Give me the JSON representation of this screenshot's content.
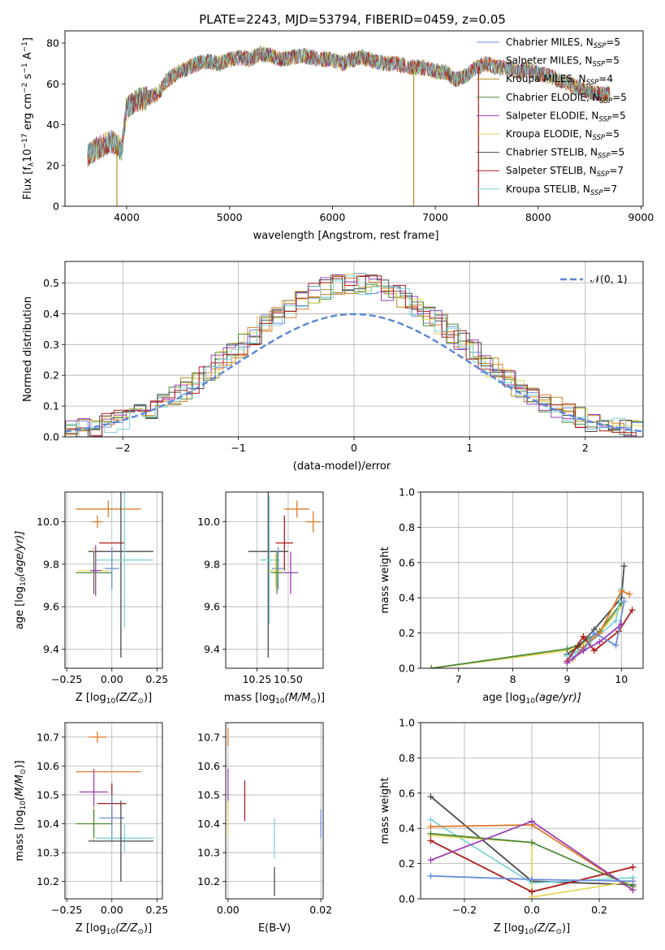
{
  "title": "PLATE=2243, MJD=53794, FIBERID=0459, z=0.05",
  "colors": {
    "chabrier_miles": "#6a8fdc",
    "salpeter_miles": "#e07a28",
    "kroupa_miles": "#b58a1b",
    "chabrier_elodie": "#4f8a3c",
    "salpeter_elodie": "#9b3fb5",
    "kroupa_elodie": "#e6d65a",
    "chabrier_stelib": "#4a4a4a",
    "salpeter_stelib": "#b01c1c",
    "kroupa_stelib": "#7fd3d9",
    "normal_curve": "#5b86d6",
    "grid": "#b0b0b0"
  },
  "legend_items": [
    {
      "label": "Chabrier MILES, N",
      "sub": "SSP",
      "suffix": "=5",
      "color_key": "chabrier_miles"
    },
    {
      "label": "Salpeter MILES, N",
      "sub": "SSP",
      "suffix": "=5",
      "color_key": "salpeter_miles"
    },
    {
      "label": "Kroupa MILES, N",
      "sub": "SSP",
      "suffix": "=4",
      "color_key": "kroupa_miles"
    },
    {
      "label": "Chabrier ELODIE, N",
      "sub": "SSP",
      "suffix": "=5",
      "color_key": "chabrier_elodie"
    },
    {
      "label": "Salpeter ELODIE, N",
      "sub": "SSP",
      "suffix": "=5",
      "color_key": "salpeter_elodie"
    },
    {
      "label": "Kroupa ELODIE, N",
      "sub": "SSP",
      "suffix": "=5",
      "color_key": "kroupa_elodie"
    },
    {
      "label": "Chabrier STELIB, N",
      "sub": "SSP",
      "suffix": "=5",
      "color_key": "chabrier_stelib"
    },
    {
      "label": "Salpeter STELIB, N",
      "sub": "SSP",
      "suffix": "=7",
      "color_key": "salpeter_stelib"
    },
    {
      "label": "Kroupa STELIB, N",
      "sub": "SSP",
      "suffix": "=7",
      "color_key": "kroupa_stelib"
    }
  ],
  "chart_data": [
    {
      "id": "spectrum",
      "type": "line",
      "xlabel": "wavelength [Angstrom, rest frame]",
      "ylabel_parts": [
        "Flux [f",
        "λ",
        "10",
        "−17",
        " erg cm",
        "−2",
        " s",
        "−1",
        " A",
        "−1",
        "]"
      ],
      "xlim": [
        3400,
        9020
      ],
      "ylim": [
        0,
        86
      ],
      "xticks": [
        4000,
        5000,
        6000,
        7000,
        8000,
        9000
      ],
      "yticks": [
        0,
        20,
        40,
        60,
        80
      ],
      "grid": false,
      "legend_position": "top-right",
      "x": [
        3620,
        3700,
        3780,
        3850,
        3900,
        3950,
        4000,
        4100,
        4200,
        4300,
        4400,
        4500,
        4600,
        4700,
        4800,
        4900,
        5000,
        5100,
        5200,
        5300,
        5400,
        5500,
        5600,
        5700,
        5800,
        5900,
        6000,
        6100,
        6200,
        6300,
        6400,
        6500,
        6600,
        6700,
        6800,
        6900,
        7000,
        7100,
        7200,
        7300,
        7400,
        7500,
        7600,
        7700,
        7800,
        7900,
        8000,
        8100,
        8200,
        8300,
        8400,
        8500,
        8600,
        8700
      ],
      "y": [
        25,
        28,
        30,
        32,
        30,
        28,
        48,
        52,
        53,
        55,
        62,
        66,
        68,
        70,
        71,
        70,
        72,
        73,
        72,
        75,
        74,
        72,
        73,
        74,
        73,
        72,
        72,
        70,
        72,
        73,
        71,
        70,
        70,
        69,
        68,
        68,
        66,
        66,
        62,
        64,
        68,
        70,
        68,
        68,
        66,
        67,
        65,
        64,
        62,
        60,
        58,
        56,
        55,
        55
      ],
      "drops": [
        {
          "x": 3905,
          "color_key": "kroupa_miles"
        },
        {
          "x": 6790,
          "color_key": "kroupa_miles"
        },
        {
          "x": 7420,
          "color_key": "salpeter_stelib"
        }
      ]
    },
    {
      "id": "residuals",
      "type": "step",
      "xlabel": "(data-model)/error",
      "ylabel": "Normed distribution",
      "xlim": [
        -2.5,
        2.5
      ],
      "ylim": [
        0,
        0.57
      ],
      "xticks": [
        -2,
        -1,
        0,
        1,
        2
      ],
      "yticks": [
        0.0,
        0.1,
        0.2,
        0.3,
        0.4,
        0.5
      ],
      "grid": true,
      "legend_position": "top-right",
      "legend_label": "𝒩(0, 1)"
    },
    {
      "id": "age_vs_Z",
      "type": "errorbar",
      "xlabel_parts": [
        "Z [log",
        "10",
        "(Z/Z",
        "⊙",
        ")]"
      ],
      "ylabel_parts": [
        "age  [log",
        "10",
        "(age/yr)]"
      ],
      "xlim": [
        -0.26,
        0.28
      ],
      "ylim": [
        9.31,
        10.14
      ],
      "xticks": [
        -0.25,
        0.0,
        0.25
      ],
      "yticks": [
        9.4,
        9.6,
        9.8,
        10.0
      ],
      "grid": true,
      "points": [
        {
          "x": -0.08,
          "y": 10.0,
          "xerr": 0.03,
          "yerr": 0.03,
          "color_key": "salpeter_miles"
        },
        {
          "x": -0.02,
          "y": 10.06,
          "xerr": 0.18,
          "yerr": 0.04,
          "color_key": "salpeter_miles"
        },
        {
          "x": 0.0,
          "y": 9.9,
          "xerr": 0.07,
          "yerr": 0.0,
          "color_key": "salpeter_stelib"
        },
        {
          "x": 0.05,
          "y": 9.86,
          "xerr": 0.18,
          "yerr": 0.5,
          "color_key": "chabrier_stelib"
        },
        {
          "x": 0.07,
          "y": 9.82,
          "xerr": 0.16,
          "yerr": 0.32,
          "color_key": "kroupa_stelib"
        },
        {
          "x": 0.0,
          "y": 9.78,
          "xerr": 0.04,
          "yerr": 0.1,
          "color_key": "chabrier_miles"
        },
        {
          "x": -0.1,
          "y": 9.77,
          "xerr": 0.09,
          "yerr": 0.11,
          "color_key": "kroupa_elodie"
        },
        {
          "x": -0.1,
          "y": 9.76,
          "xerr": 0.1,
          "yerr": 0.1,
          "color_key": "chabrier_elodie"
        },
        {
          "x": -0.09,
          "y": 9.77,
          "xerr": 0.03,
          "yerr": 0.12,
          "color_key": "salpeter_elodie"
        }
      ]
    },
    {
      "id": "age_vs_mass",
      "type": "errorbar",
      "xlabel_parts": [
        "mass [log",
        "10",
        "(M/M",
        "⊙",
        ")]"
      ],
      "ylabel": "",
      "xlim": [
        10.0,
        10.78
      ],
      "ylim": [
        9.31,
        10.14
      ],
      "xticks": [
        10.25,
        10.5
      ],
      "yticks": [
        9.4,
        9.6,
        9.8,
        10.0
      ],
      "grid": true,
      "points": [
        {
          "x": 10.57,
          "y": 10.06,
          "xerr": 0.1,
          "yerr": 0.04,
          "color_key": "salpeter_miles"
        },
        {
          "x": 10.7,
          "y": 10.0,
          "xerr": 0.06,
          "yerr": 0.05,
          "color_key": "salpeter_miles"
        },
        {
          "x": 10.47,
          "y": 9.9,
          "xerr": 0.07,
          "yerr": 0.13,
          "color_key": "salpeter_stelib"
        },
        {
          "x": 10.34,
          "y": 9.86,
          "xerr": 0.16,
          "yerr": 0.5,
          "color_key": "chabrier_stelib"
        },
        {
          "x": 10.35,
          "y": 9.82,
          "xerr": 0.08,
          "yerr": 0.3,
          "color_key": "kroupa_stelib"
        },
        {
          "x": 10.42,
          "y": 9.78,
          "xerr": 0.05,
          "yerr": 0.1,
          "color_key": "chabrier_miles"
        },
        {
          "x": 10.4,
          "y": 9.77,
          "xerr": 0.05,
          "yerr": 0.08,
          "color_key": "kroupa_elodie"
        },
        {
          "x": 10.41,
          "y": 9.76,
          "xerr": 0.05,
          "yerr": 0.1,
          "color_key": "chabrier_elodie"
        },
        {
          "x": 10.52,
          "y": 9.76,
          "xerr": 0.06,
          "yerr": 0.1,
          "color_key": "salpeter_elodie"
        }
      ]
    },
    {
      "id": "weight_vs_age",
      "type": "line",
      "xlabel_parts": [
        "age  [log",
        "10",
        "(age/yr)]"
      ],
      "ylabel": "mass weight",
      "xlim": [
        6.3,
        10.4
      ],
      "ylim": [
        0.0,
        1.0
      ],
      "xticks": [
        7,
        8,
        9,
        10
      ],
      "yticks": [
        0.0,
        0.2,
        0.4,
        0.6,
        0.8,
        1.0
      ],
      "grid": true,
      "series": [
        {
          "color_key": "kroupa_elodie",
          "x": [
            6.5,
            9.0,
            9.2,
            9.6,
            10.0
          ],
          "y": [
            0.0,
            0.1,
            0.12,
            0.2,
            0.35
          ]
        },
        {
          "color_key": "chabrier_elodie",
          "x": [
            6.5,
            9.0,
            9.2,
            9.6,
            10.0
          ],
          "y": [
            0.0,
            0.11,
            0.13,
            0.21,
            0.37
          ]
        },
        {
          "color_key": "chabrier_stelib",
          "x": [
            9.0,
            9.2,
            9.5,
            10.0,
            10.05
          ],
          "y": [
            0.08,
            0.12,
            0.22,
            0.4,
            0.58
          ]
        },
        {
          "color_key": "kroupa_stelib",
          "x": [
            9.0,
            9.15,
            9.4,
            9.9,
            10.0
          ],
          "y": [
            0.07,
            0.09,
            0.14,
            0.27,
            0.45
          ]
        },
        {
          "color_key": "salpeter_miles",
          "x": [
            9.1,
            9.3,
            9.6,
            10.0,
            10.15
          ],
          "y": [
            0.05,
            0.12,
            0.2,
            0.44,
            0.42
          ]
        },
        {
          "color_key": "salpeter_stelib",
          "x": [
            9.0,
            9.3,
            9.5,
            9.95,
            10.2
          ],
          "y": [
            0.04,
            0.18,
            0.1,
            0.21,
            0.33
          ]
        },
        {
          "color_key": "chabrier_miles",
          "x": [
            9.1,
            9.3,
            9.5,
            9.9,
            10.05
          ],
          "y": [
            0.06,
            0.1,
            0.2,
            0.13,
            0.38
          ]
        },
        {
          "color_key": "salpeter_elodie",
          "x": [
            9.0,
            9.3,
            9.6,
            10.0
          ],
          "y": [
            0.03,
            0.1,
            0.15,
            0.25
          ]
        }
      ]
    },
    {
      "id": "mass_vs_Z",
      "type": "errorbar",
      "xlabel_parts": [
        "Z [log",
        "10",
        "(Z/Z",
        "⊙",
        ")]"
      ],
      "ylabel_parts": [
        "mass [log",
        "10",
        "(M/M",
        "⊙",
        ")]"
      ],
      "xlim": [
        -0.26,
        0.28
      ],
      "ylim": [
        10.14,
        10.75
      ],
      "xticks": [
        -0.25,
        0.0,
        0.25
      ],
      "yticks": [
        10.2,
        10.3,
        10.4,
        10.5,
        10.6,
        10.7
      ],
      "grid": true,
      "points": [
        {
          "x": -0.08,
          "y": 10.7,
          "xerr": 0.05,
          "yerr": 0.02,
          "color_key": "salpeter_miles"
        },
        {
          "x": -0.02,
          "y": 10.58,
          "xerr": 0.18,
          "yerr": 0.0,
          "color_key": "salpeter_miles"
        },
        {
          "x": -0.1,
          "y": 10.51,
          "xerr": 0.08,
          "yerr": 0.08,
          "color_key": "salpeter_elodie"
        },
        {
          "x": 0.0,
          "y": 10.47,
          "xerr": 0.08,
          "yerr": 0.07,
          "color_key": "salpeter_stelib"
        },
        {
          "x": 0.0,
          "y": 10.42,
          "xerr": 0.07,
          "yerr": 0.08,
          "color_key": "chabrier_miles"
        },
        {
          "x": -0.1,
          "y": 10.4,
          "xerr": 0.1,
          "yerr": 0.06,
          "color_key": "kroupa_elodie"
        },
        {
          "x": -0.1,
          "y": 10.4,
          "xerr": 0.1,
          "yerr": 0.05,
          "color_key": "chabrier_elodie"
        },
        {
          "x": 0.07,
          "y": 10.35,
          "xerr": 0.16,
          "yerr": 0.05,
          "color_key": "kroupa_stelib"
        },
        {
          "x": 0.05,
          "y": 10.34,
          "xerr": 0.18,
          "yerr": 0.14,
          "color_key": "chabrier_stelib"
        }
      ]
    },
    {
      "id": "mass_vs_EBV",
      "type": "errorbar",
      "xlabel": "E(B-V)",
      "ylabel": "",
      "xlim": [
        -0.0005,
        0.0205
      ],
      "ylim": [
        10.14,
        10.75
      ],
      "xticks": [
        0.0,
        0.02
      ],
      "yticks": [
        10.2,
        10.3,
        10.4,
        10.5,
        10.6,
        10.7
      ],
      "grid": true,
      "points": [
        {
          "x": 0.0,
          "y": 10.7,
          "xerr": 0.0,
          "yerr": 0.03,
          "color_key": "salpeter_miles"
        },
        {
          "x": 0.0,
          "y": 10.52,
          "xerr": 0.0,
          "yerr": 0.07,
          "color_key": "salpeter_elodie"
        },
        {
          "x": 0.0,
          "y": 10.42,
          "xerr": 0.0,
          "yerr": 0.06,
          "color_key": "kroupa_elodie"
        },
        {
          "x": 0.0036,
          "y": 10.48,
          "xerr": 0.0,
          "yerr": 0.07,
          "color_key": "salpeter_stelib"
        },
        {
          "x": 0.01,
          "y": 10.35,
          "xerr": 0.0,
          "yerr": 0.07,
          "color_key": "kroupa_stelib"
        },
        {
          "x": 0.01,
          "y": 10.2,
          "xerr": 0.0,
          "yerr": 0.05,
          "color_key": "chabrier_stelib"
        },
        {
          "x": 0.02,
          "y": 10.4,
          "xerr": 0.0,
          "yerr": 0.05,
          "color_key": "chabrier_miles"
        }
      ]
    },
    {
      "id": "weight_vs_Z",
      "type": "line",
      "xlabel_parts": [
        "Z [log",
        "10",
        "(Z/Z",
        "⊙",
        ")]"
      ],
      "ylabel": "mass weight",
      "xlim": [
        -0.33,
        0.33
      ],
      "ylim": [
        0.0,
        1.0
      ],
      "xticks": [
        -0.2,
        0.0,
        0.2
      ],
      "yticks": [
        0.0,
        0.2,
        0.4,
        0.6,
        0.8,
        1.0
      ],
      "grid": true,
      "series": [
        {
          "color_key": "chabrier_stelib",
          "x": [
            -0.3,
            0.0,
            0.3
          ],
          "y": [
            0.58,
            0.1,
            0.08
          ]
        },
        {
          "color_key": "kroupa_stelib",
          "x": [
            -0.3,
            0.0,
            0.3
          ],
          "y": [
            0.45,
            0.09,
            0.12
          ]
        },
        {
          "color_key": "salpeter_miles",
          "x": [
            -0.3,
            0.0,
            0.3
          ],
          "y": [
            0.41,
            0.42,
            0.05
          ]
        },
        {
          "color_key": "kroupa_elodie",
          "x": [
            -0.3,
            0.0,
            0.0,
            0.3
          ],
          "y": [
            0.36,
            0.32,
            0.01,
            0.1
          ]
        },
        {
          "color_key": "chabrier_elodie",
          "x": [
            -0.3,
            0.0,
            0.3
          ],
          "y": [
            0.37,
            0.32,
            0.07
          ]
        },
        {
          "color_key": "salpeter_stelib",
          "x": [
            -0.3,
            0.0,
            0.3
          ],
          "y": [
            0.33,
            0.04,
            0.18
          ]
        },
        {
          "color_key": "salpeter_elodie",
          "x": [
            -0.3,
            0.0,
            0.3
          ],
          "y": [
            0.22,
            0.44,
            0.05
          ]
        },
        {
          "color_key": "chabrier_miles",
          "x": [
            -0.3,
            0.0,
            0.3
          ],
          "y": [
            0.13,
            0.11,
            0.1
          ]
        }
      ]
    }
  ]
}
